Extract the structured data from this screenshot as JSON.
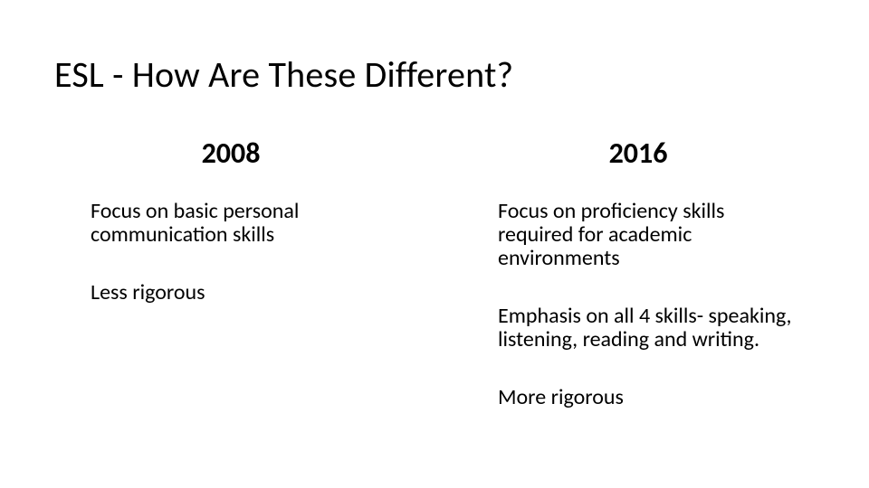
{
  "title": "ESL - How Are These Different?",
  "columns": {
    "left": {
      "year": "2008",
      "points": [
        "Focus on basic personal communication skills",
        "Less rigorous"
      ]
    },
    "right": {
      "year": "2016",
      "points": [
        "Focus on proficiency skills required for academic environments",
        "Emphasis on all 4 skills- speaking, listening, reading and writing.",
        "More rigorous"
      ]
    }
  },
  "colors": {
    "background": "#ffffff",
    "text": "#000000"
  },
  "typography": {
    "title_fontsize": 40,
    "year_fontsize": 32,
    "body_fontsize": 24,
    "font_family": "Calibri"
  }
}
